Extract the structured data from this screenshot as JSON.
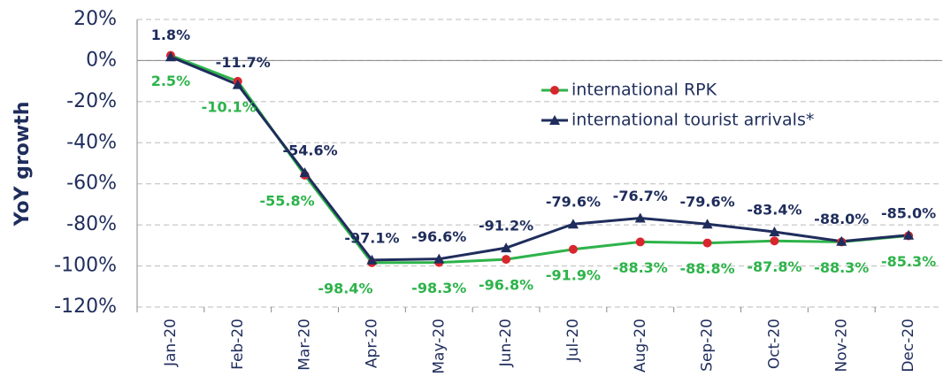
{
  "chart_data": {
    "type": "line",
    "y_label": "YoY growth",
    "categories": [
      "Jan-20",
      "Feb-20",
      "Mar-20",
      "Apr-20",
      "May-20",
      "Jun-20",
      "Jul-20",
      "Aug-20",
      "Sep-20",
      "Oct-20",
      "Nov-20",
      "Dec-20"
    ],
    "series": [
      {
        "name": "international RPK",
        "color": "#2db34a",
        "marker_color": "#d9262e",
        "marker": "circle",
        "values": [
          2.5,
          -10.1,
          -55.8,
          -98.4,
          -98.3,
          -96.8,
          -91.9,
          -88.3,
          -88.8,
          -87.8,
          -88.3,
          -85.3
        ],
        "value_labels": [
          "2.5%",
          "-10.1%",
          "-55.8%",
          "-98.4%",
          "-98.3%",
          "-96.8%",
          "-91.9%",
          "-88.3%",
          "-88.8%",
          "-87.8%",
          "-88.3%",
          "-85.3%"
        ]
      },
      {
        "name": "international tourist arrivals*",
        "color": "#1f2d5c",
        "marker_color": "#1f2d5c",
        "marker": "triangle",
        "values": [
          1.8,
          -11.7,
          -54.6,
          -97.1,
          -96.6,
          -91.2,
          -79.6,
          -76.7,
          -79.6,
          -83.4,
          -88.0,
          -85.0
        ],
        "value_labels": [
          "1.8%",
          "-11.7%",
          "-54.6%",
          "-97.1%",
          "-96.6%",
          "-91.2%",
          "-79.6%",
          "-76.7%",
          "-79.6%",
          "-83.4%",
          "-88.0%",
          "-85.0%"
        ]
      }
    ],
    "ylim": [
      -120,
      20
    ],
    "yticks": [
      {
        "value": 20,
        "label": "20%"
      },
      {
        "value": 0,
        "label": "0%"
      },
      {
        "value": -20,
        "label": "-20%"
      },
      {
        "value": -40,
        "label": "-40%"
      },
      {
        "value": -60,
        "label": "-60%"
      },
      {
        "value": -80,
        "label": "-80%"
      },
      {
        "value": -100,
        "label": "-100%"
      },
      {
        "value": -120,
        "label": "-120%"
      }
    ],
    "grid": true
  }
}
